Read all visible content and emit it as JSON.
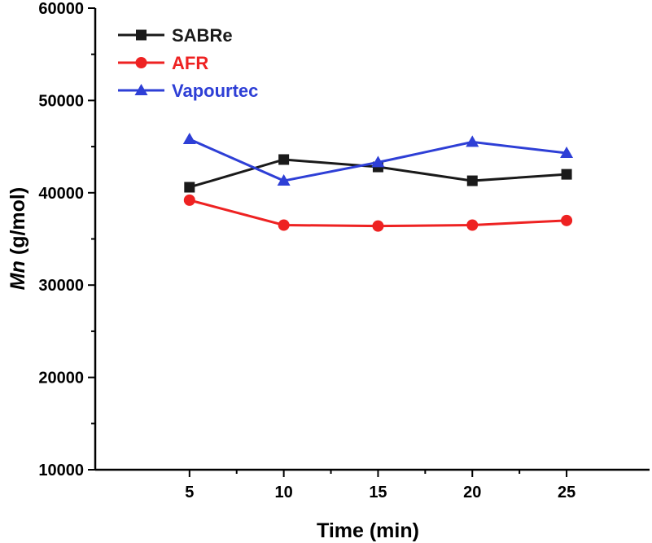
{
  "chart_data": {
    "type": "line",
    "title": "",
    "xlabel": "Time (min)",
    "ylabel_main": "Mn",
    "ylabel_rest": " (g/mol)",
    "x": [
      5,
      10,
      15,
      20,
      25
    ],
    "xlim": [
      0,
      29.4
    ],
    "ylim": [
      10000,
      60000
    ],
    "xticks": [
      5,
      10,
      15,
      20,
      25
    ],
    "yticks": [
      10000,
      20000,
      30000,
      40000,
      50000,
      60000
    ],
    "grid": false,
    "legend_position": "top-left",
    "series": [
      {
        "name": "SABRe",
        "color": "#1a1a1a",
        "marker": "square",
        "values": [
          40600,
          43600,
          42800,
          41300,
          42000
        ]
      },
      {
        "name": "AFR",
        "color": "#ee2222",
        "marker": "circle",
        "values": [
          39200,
          36500,
          36400,
          36500,
          37000
        ]
      },
      {
        "name": "Vapourtec",
        "color": "#2e3fd6",
        "marker": "triangle",
        "values": [
          45800,
          41300,
          43300,
          45500,
          44300
        ]
      }
    ]
  }
}
